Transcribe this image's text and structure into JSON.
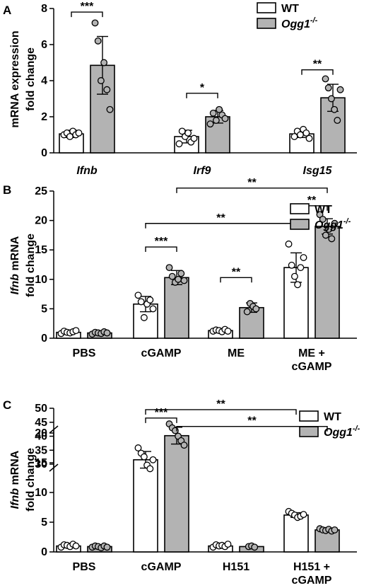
{
  "chart_data": [
    {
      "panel": "A",
      "type": "bar",
      "ylabel_lines": [
        "mRNA expression",
        "fold change"
      ],
      "ylim": [
        0,
        8
      ],
      "yticks": [
        "0",
        "2",
        "4",
        "6",
        "8"
      ],
      "categories": [
        "Ifnb",
        "Irf9",
        "Isg15"
      ],
      "categories_italic": true,
      "series": [
        {
          "name": "WT",
          "values": [
            1.05,
            0.9,
            1.05
          ],
          "sd": [
            0.2,
            0.35,
            0.2
          ],
          "points": [
            [
              1.0,
              1.1,
              0.9,
              1.2,
              1.0,
              1.1
            ],
            [
              0.5,
              1.2,
              0.9,
              1.1,
              0.6,
              0.8
            ],
            [
              0.9,
              1.2,
              1.0,
              1.3,
              1.1,
              0.8
            ]
          ]
        },
        {
          "name": "Ogg1-/-",
          "values": [
            4.85,
            2.0,
            3.05
          ],
          "sd": [
            1.6,
            0.35,
            0.75
          ],
          "points": [
            [
              7.2,
              6.2,
              4.0,
              5.0,
              3.5,
              2.4
            ],
            [
              1.6,
              2.2,
              1.8,
              2.4,
              2.1,
              1.9
            ],
            [
              4.1,
              3.6,
              3.0,
              2.4,
              1.8,
              3.5
            ]
          ]
        }
      ],
      "significance": [
        {
          "label": "***",
          "from": [
            0,
            0
          ],
          "to": [
            0,
            1
          ],
          "y": 7.8
        },
        {
          "label": "*",
          "from": [
            1,
            0
          ],
          "to": [
            1,
            1
          ],
          "y": 3.3
        },
        {
          "label": "**",
          "from": [
            2,
            0
          ],
          "to": [
            2,
            1
          ],
          "y": 4.6
        }
      ]
    },
    {
      "panel": "B",
      "type": "bar",
      "ylabel_lines": [
        "Ifnb mRNA",
        "fold change"
      ],
      "ylabel_italic_prefix": "Ifnb",
      "ylim": [
        0,
        25
      ],
      "yticks": [
        "0",
        "5",
        "10",
        "15",
        "20",
        "25"
      ],
      "categories": [
        "PBS",
        "cGAMP",
        "ME",
        "ME +\ncGAMP"
      ],
      "series": [
        {
          "name": "WT",
          "values": [
            1.0,
            5.8,
            1.3,
            12.0
          ],
          "sd": [
            0.3,
            1.3,
            0.2,
            2.5
          ],
          "points": [
            [
              0.8,
              1.2,
              1.0,
              0.9,
              1.1,
              1.3
            ],
            [
              7.3,
              6.2,
              3.5,
              5.8,
              6.5,
              5.0
            ],
            [
              1.2,
              1.4,
              1.3,
              1.1,
              1.5,
              1.2
            ],
            [
              16.0,
              12.4,
              10.5,
              9.1,
              12.0,
              13.7
            ]
          ]
        },
        {
          "name": "Ogg1-/-",
          "values": [
            0.9,
            10.3,
            5.2,
            19.0
          ],
          "sd": [
            0.2,
            1.2,
            0.8,
            1.3
          ],
          "points": [
            [
              0.7,
              1.0,
              0.9,
              0.8,
              1.1,
              0.9
            ],
            [
              12.0,
              10.5,
              9.5,
              10.0,
              11.0,
              9.8
            ],
            [
              4.5,
              5.9,
              5.4,
              5.0
            ],
            [
              21.0,
              20.2,
              17.5,
              18.5,
              16.9,
              19.5
            ]
          ]
        }
      ],
      "significance": [
        {
          "label": "***",
          "from": [
            1,
            0
          ],
          "to": [
            1,
            1
          ],
          "y": 15.5
        },
        {
          "label": "**",
          "from": [
            2,
            0
          ],
          "to": [
            2,
            1
          ],
          "y": 10.3
        },
        {
          "label": "**",
          "from": [
            1,
            0
          ],
          "to": [
            3,
            0
          ],
          "y": 19.5
        },
        {
          "label": "**",
          "from": [
            3,
            0
          ],
          "to": [
            3,
            1
          ],
          "y": 22.5
        },
        {
          "label": "**",
          "from": [
            1,
            1
          ],
          "to": [
            3,
            1
          ],
          "y": 25.5
        }
      ]
    },
    {
      "panel": "C",
      "type": "bar",
      "ylabel_lines": [
        "Ifnb mRNA",
        "fold change"
      ],
      "ylabel_italic_prefix": "Ifnb",
      "broken_axis": true,
      "ylim_lower": [
        0,
        20
      ],
      "ylim_upper": [
        30,
        50
      ],
      "yticks_lower": [
        "0",
        "5",
        "10",
        "15",
        "20"
      ],
      "yticks_upper": [
        "30",
        "35",
        "40",
        "45",
        "50"
      ],
      "categories": [
        "PBS",
        "cGAMP",
        "H151",
        "H151 +\ncGAMP"
      ],
      "series": [
        {
          "name": "WT",
          "values": [
            1.0,
            15.5,
            1.0,
            6.2
          ],
          "sd": [
            0.3,
            1.4,
            0.3,
            0.4
          ],
          "points": [
            [
              0.8,
              1.2,
              1.1,
              0.9,
              1.3,
              1.0
            ],
            [
              17.5,
              16.6,
              16.0,
              14.6,
              14.0,
              15.5
            ],
            [
              0.8,
              1.2,
              1.0,
              1.1,
              0.9,
              1.3
            ],
            [
              6.8,
              6.5,
              6.2,
              5.8,
              6.0,
              6.3
            ]
          ]
        },
        {
          "name": "Ogg1-/-",
          "values": [
            0.9,
            40.2,
            0.9,
            3.7
          ],
          "sd": [
            0.2,
            3.0,
            0.1,
            0.2
          ],
          "points": [
            [
              0.8,
              1.0,
              0.9,
              0.7,
              1.0,
              0.8
            ],
            [
              44.4,
              43.0,
              42.0,
              40.0,
              38.4,
              36.8
            ],
            [
              0.9,
              1.0,
              0.8
            ],
            [
              3.9,
              3.7,
              3.6,
              3.8,
              3.5,
              3.7
            ]
          ]
        }
      ],
      "significance": [
        {
          "label": "***",
          "from": [
            1,
            0
          ],
          "to": [
            1,
            1
          ],
          "y": 46.5
        },
        {
          "label": "**",
          "from": [
            1,
            0
          ],
          "to": [
            3,
            0
          ],
          "y": 49.5
        },
        {
          "label": "**",
          "from": [
            1,
            1
          ],
          "to": [
            3,
            1
          ],
          "y": 43.5
        }
      ]
    }
  ],
  "colors": {
    "wt": "#ffffff",
    "ogg1": "#b3b3b3",
    "ink": "#000000"
  }
}
